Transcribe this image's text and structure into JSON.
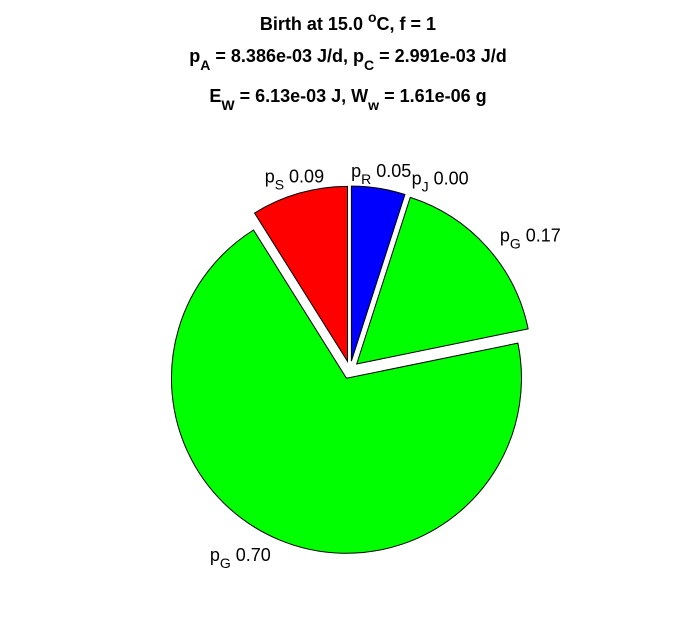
{
  "chart_data": {
    "type": "pie",
    "title": [
      [
        "Birth at 15.0 ",
        "o",
        "C, f = 1"
      ],
      [
        "p",
        "A",
        " = 8.386e-03 J/d, p",
        "C",
        " = 2.991e-03 J/d"
      ],
      [
        "E",
        "W",
        " = 6.13e-03 J, W",
        "w",
        " = 1.61e-06 g"
      ]
    ],
    "labels": [
      [
        "p",
        "R"
      ],
      [
        "p",
        "J"
      ],
      [
        "p",
        "G"
      ],
      [
        "p",
        "G"
      ],
      [
        "p",
        "S"
      ]
    ],
    "values": [
      0.05,
      0.0,
      0.17,
      0.7,
      0.09
    ],
    "value_labels": [
      "0.05",
      "0.00",
      "0.17",
      "0.70",
      "0.09"
    ],
    "colors": [
      "#0000ff",
      null,
      "#00ff00",
      "#00ff00",
      "#ff0000"
    ]
  }
}
